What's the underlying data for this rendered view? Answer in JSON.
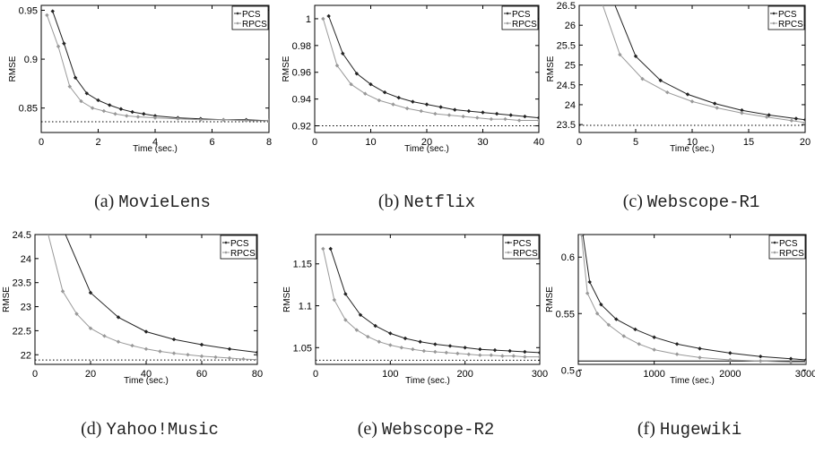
{
  "chart_data": [
    {
      "type": "line",
      "caption_tag": "(a)",
      "caption_name": "MovieLens",
      "xlabel": "Time (sec.)",
      "ylabel": "RMSE",
      "xlim": [
        0,
        8
      ],
      "ylim": [
        0.825,
        0.955
      ],
      "xticks": [
        0,
        2,
        4,
        6,
        8
      ],
      "xtick_labels": [
        "0",
        "2",
        "4",
        "6",
        "8"
      ],
      "yticks": [
        0.85,
        0.9,
        0.95
      ],
      "ytick_labels": [
        "0.85",
        "0.9",
        "0.95"
      ],
      "baseline": 0.836,
      "legend": "top-right",
      "series": [
        {
          "name": "PCS",
          "color": "#222222",
          "x": [
            0.4,
            0.8,
            1.2,
            1.6,
            2.0,
            2.4,
            2.8,
            3.2,
            3.6,
            4.0,
            4.8,
            5.6,
            6.4,
            7.2,
            8.0
          ],
          "y": [
            0.949,
            0.916,
            0.881,
            0.865,
            0.858,
            0.853,
            0.849,
            0.846,
            0.844,
            0.842,
            0.84,
            0.839,
            0.838,
            0.838,
            0.837
          ]
        },
        {
          "name": "RPCS",
          "color": "#999999",
          "x": [
            0.2,
            0.6,
            1.0,
            1.4,
            1.8,
            2.2,
            2.6,
            3.0,
            3.4,
            4.0,
            4.8,
            5.6,
            6.4,
            7.2,
            8.0
          ],
          "y": [
            0.945,
            0.913,
            0.872,
            0.857,
            0.85,
            0.847,
            0.844,
            0.842,
            0.841,
            0.84,
            0.839,
            0.838,
            0.838,
            0.837,
            0.837
          ]
        }
      ]
    },
    {
      "type": "line",
      "caption_tag": "(b)",
      "caption_name": "Netflix",
      "xlabel": "Time (sec.)",
      "ylabel": "RMSE",
      "xlim": [
        0,
        40
      ],
      "ylim": [
        0.915,
        1.01
      ],
      "xticks": [
        0,
        10,
        20,
        30,
        40
      ],
      "xtick_labels": [
        "0",
        "10",
        "20",
        "30",
        "40"
      ],
      "yticks": [
        0.92,
        0.94,
        0.96,
        0.98,
        1.0
      ],
      "ytick_labels": [
        "0.92",
        "0.94",
        "0.96",
        "0.98",
        "1"
      ],
      "baseline": 0.92,
      "legend": "top-right",
      "series": [
        {
          "name": "PCS",
          "color": "#222222",
          "x": [
            2.5,
            5,
            7.5,
            10,
            12.5,
            15,
            17.5,
            20,
            22.5,
            25,
            27.5,
            30,
            32.5,
            35,
            37.5,
            40
          ],
          "y": [
            1.002,
            0.974,
            0.959,
            0.951,
            0.945,
            0.941,
            0.938,
            0.936,
            0.934,
            0.932,
            0.931,
            0.93,
            0.929,
            0.928,
            0.927,
            0.926
          ]
        },
        {
          "name": "RPCS",
          "color": "#999999",
          "x": [
            1.5,
            4,
            6.5,
            9,
            11.5,
            14,
            16.5,
            19,
            21.5,
            24,
            26.5,
            29,
            31.5,
            34,
            36.5,
            40
          ],
          "y": [
            1.0,
            0.965,
            0.951,
            0.944,
            0.939,
            0.936,
            0.933,
            0.931,
            0.929,
            0.928,
            0.927,
            0.926,
            0.925,
            0.925,
            0.924,
            0.924
          ]
        }
      ]
    },
    {
      "type": "line",
      "caption_tag": "(c)",
      "caption_name": "Webscope-R1",
      "xlabel": "Time (sec.)",
      "ylabel": "RMSE",
      "xlim": [
        0,
        20
      ],
      "ylim": [
        23.3,
        26.5
      ],
      "xticks": [
        0,
        5,
        10,
        15,
        20
      ],
      "xtick_labels": [
        "0",
        "5",
        "10",
        "15",
        "20"
      ],
      "yticks": [
        23.5,
        24,
        24.5,
        25,
        25.5,
        26,
        26.5
      ],
      "ytick_labels": [
        "23.5",
        "24",
        "24.5",
        "25",
        "25.5",
        "26",
        "26.5"
      ],
      "baseline": 23.48,
      "legend": "top-right",
      "series": [
        {
          "name": "PCS",
          "color": "#222222",
          "x": [
            2.6,
            5,
            7.2,
            9.6,
            12,
            14.4,
            16.8,
            19.2,
            20
          ],
          "y": [
            26.9,
            25.22,
            24.61,
            24.26,
            24.03,
            23.86,
            23.74,
            23.65,
            23.62
          ]
        },
        {
          "name": "RPCS",
          "color": "#999999",
          "x": [
            1.6,
            3.6,
            5.6,
            7.8,
            10,
            12.2,
            14.4,
            16.6,
            18.8,
            20
          ],
          "y": [
            26.9,
            25.26,
            24.65,
            24.31,
            24.08,
            23.92,
            23.79,
            23.69,
            23.6,
            23.55
          ]
        }
      ]
    },
    {
      "type": "line",
      "caption_tag": "(d)",
      "caption_name": "Yahoo!Music",
      "xlabel": "Time (sec.)",
      "ylabel": "RMSE",
      "xlim": [
        0,
        80
      ],
      "ylim": [
        21.8,
        24.5
      ],
      "xticks": [
        0,
        20,
        40,
        60,
        80
      ],
      "xtick_labels": [
        "0",
        "20",
        "40",
        "60",
        "80"
      ],
      "yticks": [
        22,
        22.5,
        23,
        23.5,
        24,
        24.5
      ],
      "ytick_labels": [
        "22",
        "22.5",
        "23",
        "23.5",
        "24",
        "24.5"
      ],
      "baseline": 21.89,
      "legend": "top-right",
      "series": [
        {
          "name": "PCS",
          "color": "#222222",
          "x": [
            8,
            20,
            30,
            40,
            50,
            60,
            70,
            80
          ],
          "y": [
            24.9,
            23.29,
            22.78,
            22.48,
            22.32,
            22.21,
            22.12,
            22.05
          ]
        },
        {
          "name": "RPCS",
          "color": "#999999",
          "x": [
            3,
            10,
            15,
            20,
            25,
            30,
            35,
            40,
            45,
            50,
            55,
            60,
            65,
            70,
            75,
            80
          ],
          "y": [
            24.9,
            23.32,
            22.85,
            22.55,
            22.39,
            22.27,
            22.19,
            22.12,
            22.07,
            22.03,
            22.0,
            21.97,
            21.95,
            21.93,
            21.91,
            21.9
          ]
        }
      ]
    },
    {
      "type": "line",
      "caption_tag": "(e)",
      "caption_name": "Webscope-R2",
      "xlabel": "Time (sec.)",
      "ylabel": "RMSE",
      "xlim": [
        0,
        300
      ],
      "ylim": [
        1.03,
        1.185
      ],
      "xticks": [
        0,
        100,
        200,
        300
      ],
      "xtick_labels": [
        "0",
        "100",
        "200",
        "300"
      ],
      "yticks": [
        1.05,
        1.1,
        1.15
      ],
      "ytick_labels": [
        "1.05",
        "1.1",
        "1.15"
      ],
      "baseline": 1.035,
      "legend": "top-right",
      "series": [
        {
          "name": "PCS",
          "color": "#222222",
          "x": [
            20,
            40,
            60,
            80,
            100,
            120,
            140,
            160,
            180,
            200,
            220,
            240,
            260,
            280,
            300
          ],
          "y": [
            1.168,
            1.114,
            1.089,
            1.076,
            1.067,
            1.061,
            1.057,
            1.054,
            1.052,
            1.05,
            1.048,
            1.047,
            1.046,
            1.045,
            1.044
          ]
        },
        {
          "name": "RPCS",
          "color": "#999999",
          "x": [
            10,
            25,
            40,
            55,
            70,
            85,
            100,
            115,
            130,
            145,
            160,
            175,
            190,
            205,
            220,
            235,
            250,
            265,
            280,
            300
          ],
          "y": [
            1.168,
            1.107,
            1.083,
            1.071,
            1.063,
            1.057,
            1.053,
            1.05,
            1.048,
            1.046,
            1.045,
            1.044,
            1.043,
            1.042,
            1.041,
            1.041,
            1.04,
            1.04,
            1.039,
            1.039
          ]
        }
      ]
    },
    {
      "type": "line",
      "caption_tag": "(f)",
      "caption_name": "Hugewiki",
      "xlabel": "Time (sec.)",
      "ylabel": "RMSE",
      "xlim": [
        0,
        3000
      ],
      "ylim": [
        0.505,
        0.62
      ],
      "xticks": [
        0,
        1000,
        2000,
        3000
      ],
      "xtick_labels": [
        "0",
        "1000",
        "2000",
        "3000"
      ],
      "yticks": [
        0.5,
        0.55,
        0.6
      ],
      "ytick_labels": [
        "0.5",
        "0.55",
        "0.6"
      ],
      "baseline": 0.508,
      "legend": "top-right",
      "series": [
        {
          "name": "PCS",
          "color": "#222222",
          "x": [
            60,
            150,
            300,
            500,
            750,
            1000,
            1300,
            1600,
            2000,
            2400,
            2800,
            3000
          ],
          "y": [
            0.62,
            0.578,
            0.558,
            0.545,
            0.536,
            0.529,
            0.523,
            0.519,
            0.515,
            0.512,
            0.51,
            0.509
          ]
        },
        {
          "name": "RPCS",
          "color": "#999999",
          "x": [
            40,
            120,
            250,
            400,
            600,
            800,
            1000,
            1300,
            1600,
            2000,
            2400,
            2800,
            3000
          ],
          "y": [
            0.62,
            0.568,
            0.55,
            0.54,
            0.53,
            0.523,
            0.518,
            0.514,
            0.511,
            0.509,
            0.508,
            0.507,
            0.507
          ]
        }
      ]
    }
  ]
}
